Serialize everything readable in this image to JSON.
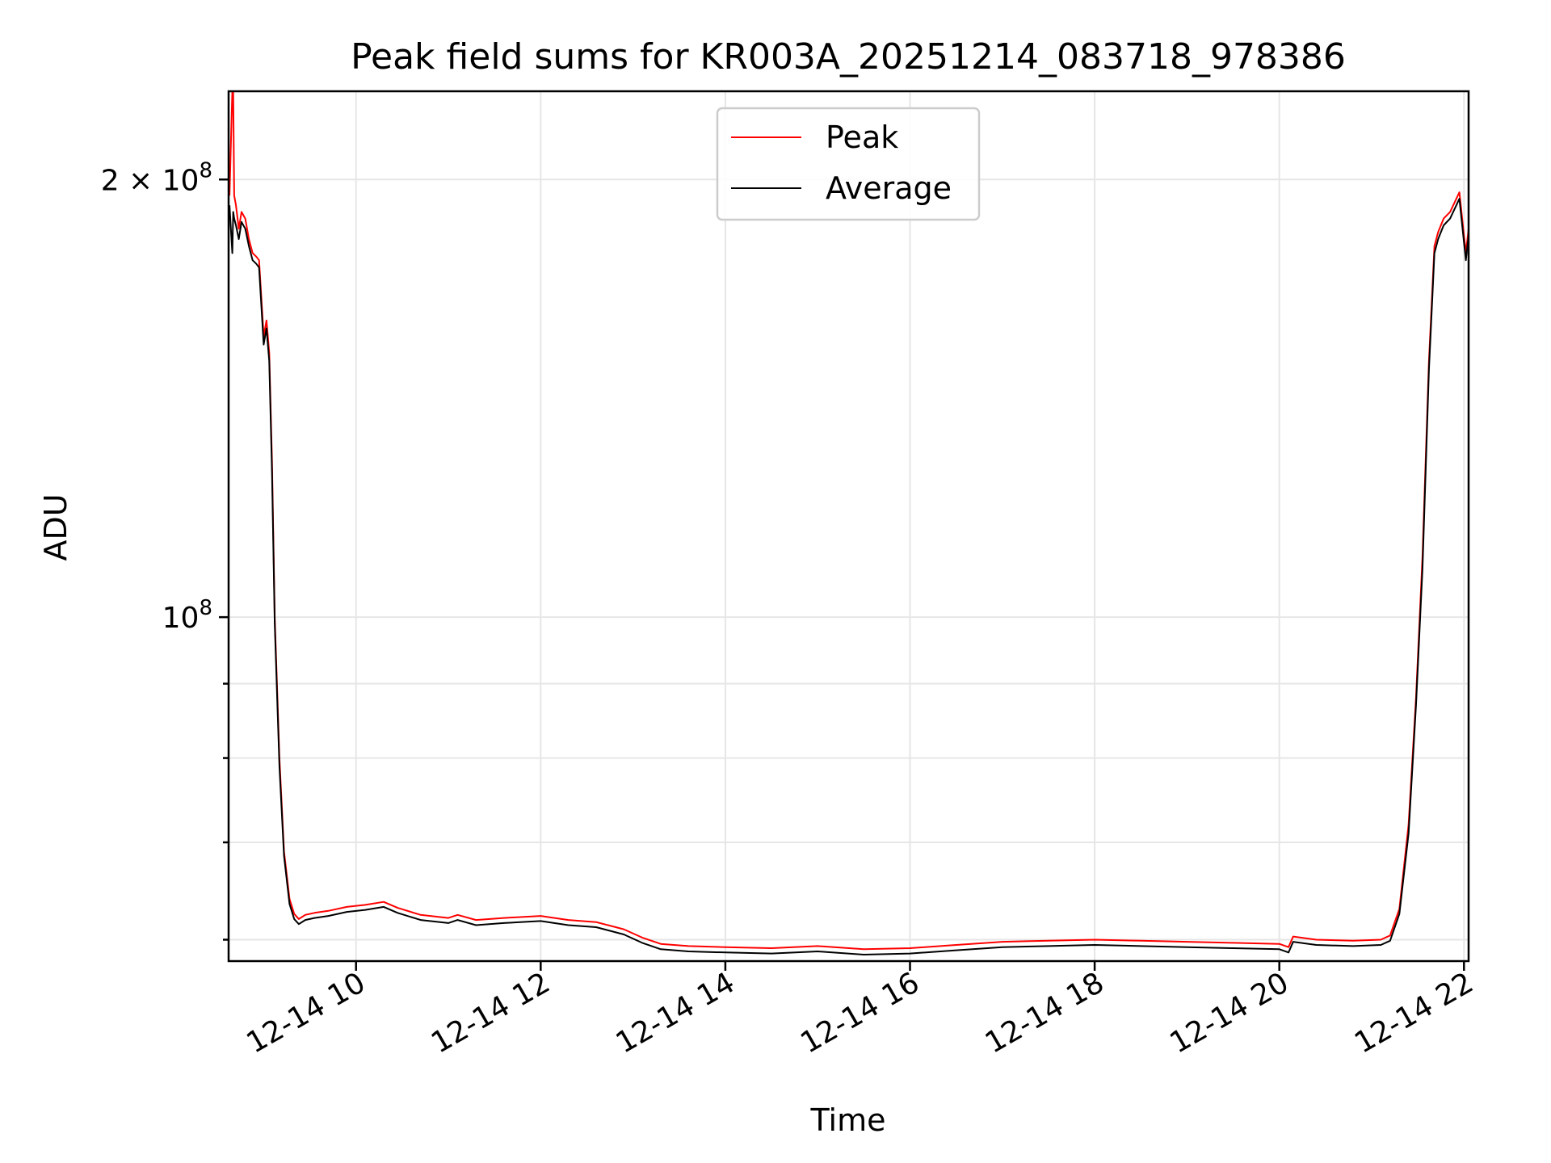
{
  "chart_data": {
    "type": "line",
    "title": "Peak field sums for KR003A_20251214_083718_978386",
    "xlabel": "Time",
    "ylabel": "ADU",
    "x_unit": "hours (Dec 14)",
    "xlim": [
      8.62,
      22.05
    ],
    "ylim": [
      58000000,
      230000000
    ],
    "y_scale": "log",
    "grid": true,
    "legend_position": "upper-center",
    "x_ticks": [
      {
        "value": 10,
        "label": "12-14 10"
      },
      {
        "value": 12,
        "label": "12-14 12"
      },
      {
        "value": 14,
        "label": "12-14 14"
      },
      {
        "value": 16,
        "label": "12-14 16"
      },
      {
        "value": 18,
        "label": "12-14 18"
      },
      {
        "value": 20,
        "label": "12-14 20"
      },
      {
        "value": 22,
        "label": "12-14 22"
      }
    ],
    "y_major_ticks": [
      {
        "value": 200000000,
        "base": "2 × 10",
        "exp": "8"
      },
      {
        "value": 100000000,
        "base": "10",
        "exp": "8"
      }
    ],
    "y_minor_ticks": [
      60000000,
      70000000,
      80000000,
      90000000
    ],
    "series": [
      {
        "name": "Peak",
        "color": "#ff0000",
        "x": [
          8.63,
          8.66,
          8.67,
          8.68,
          8.7,
          8.73,
          8.76,
          8.8,
          8.84,
          8.88,
          8.92,
          8.95,
          9.0,
          9.03,
          9.06,
          9.09,
          9.12,
          9.17,
          9.22,
          9.28,
          9.33,
          9.38,
          9.45,
          9.55,
          9.7,
          9.9,
          10.1,
          10.3,
          10.45,
          10.7,
          11.0,
          11.1,
          11.3,
          11.6,
          12.0,
          12.3,
          12.6,
          12.9,
          13.1,
          13.3,
          13.6,
          14.0,
          14.5,
          15.0,
          15.5,
          16.0,
          16.5,
          17.0,
          17.5,
          18.0,
          18.5,
          19.0,
          19.5,
          20.0,
          20.1,
          20.15,
          20.4,
          20.8,
          21.1,
          21.2,
          21.3,
          21.4,
          21.48,
          21.55,
          21.62,
          21.68,
          21.72,
          21.78,
          21.85,
          21.95,
          22.02,
          22.05
        ],
        "y": [
          195000000,
          230000000,
          230000000,
          195000000,
          192000000,
          185000000,
          190000000,
          188000000,
          182000000,
          178000000,
          177000000,
          176000000,
          156000000,
          160000000,
          152000000,
          128000000,
          100000000,
          80000000,
          69000000,
          64000000,
          62500000,
          62000000,
          62400000,
          62600000,
          62800000,
          63200000,
          63400000,
          63700000,
          63100000,
          62400000,
          62100000,
          62400000,
          61900000,
          62100000,
          62300000,
          61900000,
          61700000,
          61000000,
          60200000,
          59600000,
          59400000,
          59300000,
          59200000,
          59400000,
          59100000,
          59200000,
          59500000,
          59800000,
          59900000,
          60000000,
          59900000,
          59800000,
          59700000,
          59600000,
          59300000,
          60300000,
          60000000,
          59900000,
          60000000,
          60400000,
          63000000,
          72000000,
          88000000,
          110000000,
          150000000,
          180000000,
          184000000,
          188000000,
          190000000,
          196000000,
          178000000,
          185000000
        ]
      },
      {
        "name": "Average",
        "color": "#000000",
        "x": [
          8.63,
          8.66,
          8.67,
          8.68,
          8.7,
          8.73,
          8.76,
          8.8,
          8.84,
          8.88,
          8.92,
          8.95,
          9.0,
          9.03,
          9.06,
          9.09,
          9.12,
          9.17,
          9.22,
          9.28,
          9.33,
          9.38,
          9.45,
          9.55,
          9.7,
          9.9,
          10.1,
          10.3,
          10.45,
          10.7,
          11.0,
          11.1,
          11.3,
          11.6,
          12.0,
          12.3,
          12.6,
          12.9,
          13.1,
          13.3,
          13.6,
          14.0,
          14.5,
          15.0,
          15.5,
          16.0,
          16.5,
          17.0,
          17.5,
          18.0,
          18.5,
          19.0,
          19.5,
          20.0,
          20.1,
          20.15,
          20.4,
          20.8,
          21.1,
          21.2,
          21.3,
          21.4,
          21.48,
          21.55,
          21.62,
          21.68,
          21.72,
          21.78,
          21.85,
          21.95,
          22.02,
          22.05
        ],
        "y": [
          192000000,
          178000000,
          190000000,
          188000000,
          186000000,
          182000000,
          187000000,
          185000000,
          180000000,
          176000000,
          175000000,
          174000000,
          154000000,
          158000000,
          150000000,
          126000000,
          99000000,
          79000000,
          68500000,
          63500000,
          62000000,
          61500000,
          61900000,
          62100000,
          62300000,
          62700000,
          62900000,
          63200000,
          62600000,
          61900000,
          61600000,
          61900000,
          61400000,
          61600000,
          61800000,
          61400000,
          61200000,
          60500000,
          59700000,
          59100000,
          58900000,
          58800000,
          58700000,
          58900000,
          58600000,
          58700000,
          59000000,
          59300000,
          59400000,
          59500000,
          59400000,
          59300000,
          59200000,
          59100000,
          58800000,
          59800000,
          59500000,
          59400000,
          59500000,
          59900000,
          62500000,
          71000000,
          87000000,
          108000000,
          148000000,
          178000000,
          182000000,
          186000000,
          188000000,
          194000000,
          176000000,
          183000000
        ]
      }
    ]
  }
}
